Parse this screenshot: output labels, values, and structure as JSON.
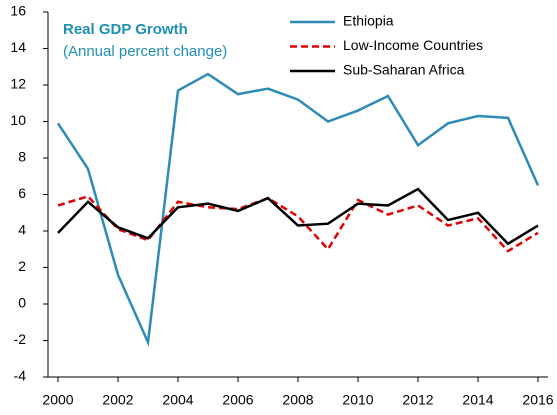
{
  "chart_data": {
    "type": "line",
    "title": "Real GDP Growth",
    "subtitle": "(Annual percent change)",
    "x": [
      2000,
      2001,
      2002,
      2003,
      2004,
      2005,
      2006,
      2007,
      2008,
      2009,
      2010,
      2011,
      2012,
      2013,
      2014,
      2015,
      2016
    ],
    "series": [
      {
        "name": "Ethiopia",
        "color": "#2e8bb8",
        "dashed": false,
        "values": [
          9.9,
          7.4,
          1.6,
          -2.1,
          11.7,
          12.6,
          11.5,
          11.8,
          11.2,
          10.0,
          10.6,
          11.4,
          8.7,
          9.9,
          10.3,
          10.2,
          6.5
        ]
      },
      {
        "name": "Low-Income Countries",
        "color": "#e00000",
        "dashed": true,
        "values": [
          5.4,
          5.9,
          4.1,
          3.5,
          5.6,
          5.3,
          5.2,
          5.8,
          4.8,
          3.0,
          5.7,
          4.9,
          5.4,
          4.3,
          4.7,
          2.9,
          3.9
        ]
      },
      {
        "name": "Sub-Saharan Africa",
        "color": "#000000",
        "dashed": false,
        "values": [
          3.9,
          5.6,
          4.2,
          3.6,
          5.3,
          5.5,
          5.1,
          5.8,
          4.3,
          4.4,
          5.5,
          5.4,
          6.3,
          4.6,
          5.0,
          3.3,
          4.3
        ]
      }
    ],
    "xlim": [
      2000,
      2016
    ],
    "xticks": [
      2000,
      2002,
      2004,
      2006,
      2008,
      2010,
      2012,
      2014,
      2016
    ],
    "ylim": [
      -4,
      16
    ],
    "yticks": [
      -4,
      -2,
      0,
      2,
      4,
      6,
      8,
      10,
      12,
      14,
      16
    ],
    "grid": false,
    "legend": "top-right"
  }
}
